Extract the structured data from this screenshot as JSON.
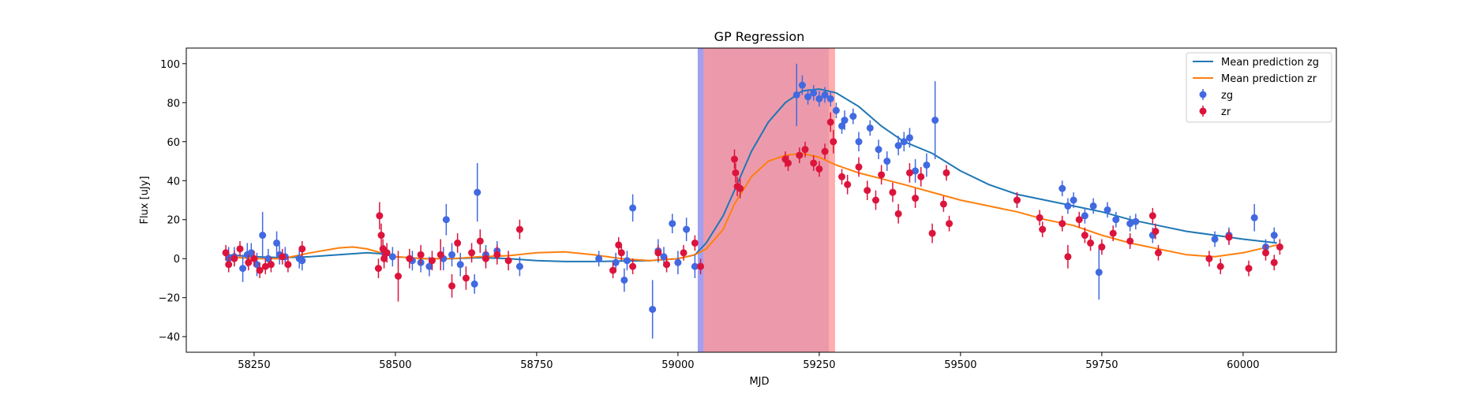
{
  "chart_data": {
    "type": "scatter",
    "title": "GP Regression",
    "xlabel": "MJD",
    "ylabel": "Flux [uJy]",
    "xlim": [
      58130,
      60165
    ],
    "ylim": [
      -48,
      108
    ],
    "xticks": [
      58250,
      58500,
      58750,
      59000,
      59250,
      59500,
      59750,
      60000
    ],
    "yticks": [
      -40,
      -20,
      0,
      20,
      40,
      60,
      80,
      100
    ],
    "grid": false,
    "legend_position": "top-right",
    "shaded_regions": [
      {
        "x0": 59035,
        "x1": 59267,
        "color": "#8f8ff0",
        "opacity": 0.85
      },
      {
        "x0": 59045,
        "x1": 59278,
        "color": "#ff9999",
        "opacity": 0.8
      }
    ],
    "series": [
      {
        "name": "Mean prediction zg",
        "kind": "line",
        "color": "#1f77b4",
        "x": [
          58200,
          58250,
          58300,
          58350,
          58400,
          58450,
          58475,
          58500,
          58550,
          58600,
          58650,
          58700,
          58750,
          58800,
          58850,
          58900,
          58950,
          59000,
          59030,
          59050,
          59080,
          59100,
          59130,
          59160,
          59190,
          59220,
          59250,
          59280,
          59320,
          59360,
          59400,
          59450,
          59500,
          59550,
          59600,
          59650,
          59700,
          59750,
          59800,
          59850,
          59900,
          59950,
          60000,
          60060
        ],
        "values": [
          2,
          1,
          0.5,
          1,
          2,
          3,
          2.5,
          1,
          0,
          0,
          0.5,
          0,
          -1,
          -1.5,
          -1.5,
          -1.2,
          -1,
          0,
          2,
          8,
          22,
          35,
          55,
          70,
          80,
          86,
          87,
          85,
          78,
          68,
          60,
          54,
          45,
          38,
          33,
          30,
          27,
          24,
          20,
          17,
          14,
          12,
          10,
          8
        ]
      },
      {
        "name": "Mean prediction zr",
        "kind": "line",
        "color": "#ff7f0e",
        "x": [
          58200,
          58250,
          58300,
          58350,
          58400,
          58425,
          58450,
          58475,
          58500,
          58550,
          58600,
          58650,
          58700,
          58750,
          58800,
          58850,
          58900,
          58950,
          59000,
          59030,
          59050,
          59080,
          59100,
          59130,
          59160,
          59190,
          59220,
          59250,
          59280,
          59320,
          59360,
          59400,
          59450,
          59500,
          59550,
          59600,
          59650,
          59700,
          59750,
          59800,
          59850,
          59900,
          59950,
          60000,
          60060
        ],
        "values": [
          1,
          0,
          0,
          3,
          5.5,
          6,
          5,
          3,
          1,
          0,
          0,
          1,
          1.5,
          3,
          3.5,
          2,
          0,
          -1,
          0,
          2,
          5,
          15,
          28,
          42,
          50,
          53,
          54,
          52,
          48,
          44,
          41,
          38,
          34,
          30,
          27,
          24,
          20,
          17,
          12,
          8,
          5,
          2,
          1,
          3,
          7
        ]
      },
      {
        "name": "zg",
        "kind": "errorbar",
        "color": "#4169e1",
        "x": [
          58205,
          58215,
          58230,
          58238,
          58245,
          58255,
          58265,
          58275,
          58290,
          58295,
          58305,
          58330,
          58335,
          58480,
          58495,
          58530,
          58545,
          58560,
          58585,
          58590,
          58600,
          58615,
          58640,
          58645,
          58660,
          58680,
          58720,
          58860,
          58890,
          58905,
          58910,
          58920,
          58955,
          58965,
          58975,
          58990,
          59000,
          59015,
          59030,
          59210,
          59220,
          59230,
          59240,
          59250,
          59260,
          59270,
          59280,
          59290,
          59295,
          59310,
          59320,
          59340,
          59355,
          59370,
          59390,
          59400,
          59410,
          59420,
          59440,
          59455,
          59600,
          59680,
          59690,
          59700,
          59720,
          59735,
          59745,
          59760,
          59775,
          59800,
          59810,
          59840,
          59950,
          59975,
          60020,
          60040,
          60055
        ],
        "values": [
          0,
          1,
          -5,
          2,
          3,
          -3,
          12,
          0,
          8,
          2,
          1,
          0,
          -1,
          3,
          1,
          -1,
          -2,
          -4,
          0,
          20,
          2,
          -3,
          -13,
          34,
          2,
          4,
          -4,
          0,
          -2,
          -11,
          -1,
          26,
          -26,
          4,
          1,
          18,
          -2,
          15,
          -4,
          84,
          89,
          83,
          85,
          82,
          84,
          82,
          76,
          68,
          71,
          73,
          60,
          67,
          56,
          50,
          58,
          60,
          62,
          45,
          48,
          71,
          30,
          36,
          27,
          30,
          22,
          27,
          -7,
          25,
          20,
          18,
          19,
          12,
          10,
          12,
          21,
          6,
          12
        ],
        "errors": [
          6,
          5,
          7,
          6,
          5,
          6,
          12,
          5,
          6,
          5,
          5,
          5,
          5,
          4,
          5,
          5,
          5,
          5,
          6,
          8,
          6,
          6,
          5,
          15,
          5,
          5,
          5,
          4,
          5,
          6,
          5,
          7,
          15,
          6,
          5,
          5,
          6,
          6,
          6,
          16,
          5,
          4,
          4,
          4,
          4,
          4,
          4,
          4,
          5,
          4,
          5,
          4,
          5,
          5,
          5,
          5,
          5,
          6,
          6,
          20,
          4,
          4,
          4,
          4,
          4,
          4,
          14,
          4,
          4,
          4,
          4,
          4,
          4,
          4,
          7,
          4,
          4
        ]
      },
      {
        "name": "zr",
        "kind": "errorbar",
        "color": "#dc143c",
        "x": [
          58200,
          58205,
          58215,
          58225,
          58240,
          58250,
          58260,
          58270,
          58280,
          58300,
          58310,
          58335,
          58470,
          58472,
          58475,
          58478,
          58480,
          58485,
          58505,
          58525,
          58545,
          58565,
          58580,
          58600,
          58610,
          58625,
          58635,
          58650,
          58660,
          58680,
          58700,
          58720,
          58885,
          58895,
          58900,
          58920,
          58965,
          58980,
          59010,
          59030,
          59040,
          59100,
          59102,
          59105,
          59110,
          59190,
          59195,
          59215,
          59225,
          59240,
          59250,
          59260,
          59270,
          59275,
          59290,
          59300,
          59320,
          59335,
          59350,
          59360,
          59380,
          59390,
          59410,
          59420,
          59430,
          59450,
          59470,
          59475,
          59480,
          59600,
          59640,
          59645,
          59680,
          59690,
          59710,
          59720,
          59730,
          59750,
          59770,
          59800,
          59840,
          59845,
          59850,
          59940,
          59960,
          59975,
          60010,
          60040,
          60055,
          60065
        ],
        "values": [
          3,
          -3,
          0,
          5,
          -2,
          0,
          -6,
          -4,
          -3,
          1,
          -3,
          5,
          -5,
          22,
          12,
          5,
          0,
          3,
          -9,
          0,
          2,
          -1,
          2,
          -14,
          8,
          -10,
          3,
          9,
          0,
          2,
          -1,
          15,
          -6,
          7,
          3,
          -4,
          3,
          -3,
          3,
          8,
          -4,
          51,
          44,
          37,
          36,
          51,
          49,
          53,
          56,
          49,
          46,
          55,
          70,
          60,
          42,
          38,
          47,
          35,
          30,
          43,
          34,
          23,
          44,
          31,
          42,
          13,
          28,
          44,
          18,
          30,
          21,
          15,
          18,
          1,
          20,
          12,
          8,
          6,
          13,
          9,
          22,
          14,
          3,
          0,
          -4,
          11,
          -5,
          3,
          -2,
          6
        ],
        "errors": [
          4,
          4,
          4,
          4,
          4,
          4,
          4,
          4,
          4,
          4,
          4,
          4,
          5,
          7,
          6,
          5,
          5,
          5,
          13,
          5,
          5,
          5,
          8,
          6,
          5,
          6,
          5,
          6,
          5,
          5,
          5,
          5,
          4,
          4,
          4,
          4,
          4,
          4,
          4,
          4,
          4,
          5,
          5,
          5,
          5,
          4,
          4,
          4,
          4,
          4,
          4,
          4,
          5,
          6,
          4,
          5,
          5,
          5,
          5,
          5,
          5,
          5,
          5,
          5,
          5,
          5,
          4,
          4,
          4,
          4,
          4,
          4,
          4,
          6,
          4,
          4,
          4,
          4,
          4,
          4,
          4,
          4,
          4,
          4,
          4,
          4,
          4,
          4,
          4,
          4
        ]
      }
    ]
  }
}
